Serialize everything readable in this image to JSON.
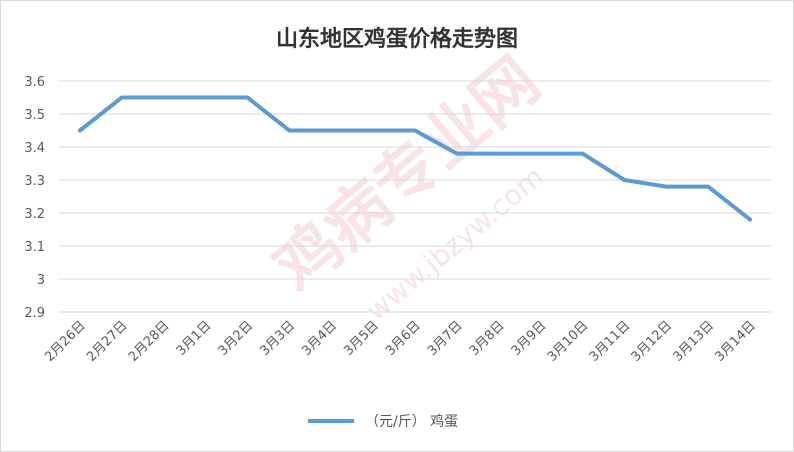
{
  "chart_data": {
    "type": "line",
    "title": "山东地区鸡蛋价格走势图",
    "categories": [
      "2月26日",
      "2月27日",
      "2月28日",
      "3月1日",
      "3月2日",
      "3月3日",
      "3月4日",
      "3月5日",
      "3月6日",
      "3月7日",
      "3月8日",
      "3月9日",
      "3月10日",
      "3月11日",
      "3月12日",
      "3月13日",
      "3月14日"
    ],
    "series": [
      {
        "name": "（元/斤） 鸡蛋",
        "color": "#5b9bd5",
        "values": [
          3.45,
          3.55,
          3.55,
          3.55,
          3.55,
          3.45,
          3.45,
          3.45,
          3.45,
          3.38,
          3.38,
          3.38,
          3.38,
          3.3,
          3.28,
          3.28,
          3.18
        ]
      }
    ],
    "ylim": [
      2.9,
      3.6
    ],
    "yticks": [
      2.9,
      3,
      3.1,
      3.2,
      3.3,
      3.4,
      3.5,
      3.6
    ],
    "xlabel": "",
    "ylabel": "",
    "grid": true,
    "legend": "bottom"
  },
  "watermark": {
    "text": "鸡病专业网",
    "url": "www.jbzyw.com"
  }
}
